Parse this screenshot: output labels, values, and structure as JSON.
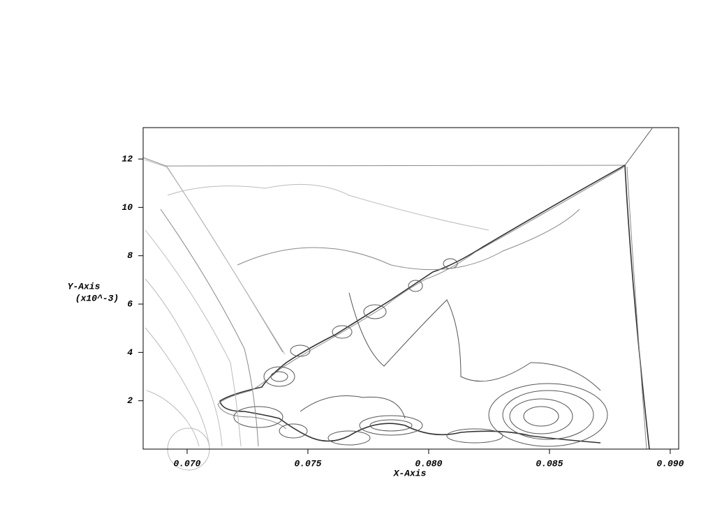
{
  "chart_data": {
    "type": "contour",
    "xlabel": "X-Axis",
    "ylabel": "Y-Axis",
    "ylabel_scale": "(x10^-3)",
    "xlim": [
      0.06818,
      0.09035
    ],
    "ylim": [
      0,
      13.3
    ],
    "xticks": [
      {
        "value": 0.07,
        "label": "0.070"
      },
      {
        "value": 0.075,
        "label": "0.075"
      },
      {
        "value": 0.08,
        "label": "0.080"
      },
      {
        "value": 0.085,
        "label": "0.085"
      },
      {
        "value": 0.09,
        "label": "0.090"
      }
    ],
    "yticks": [
      2,
      4,
      6,
      8,
      10,
      12
    ]
  }
}
